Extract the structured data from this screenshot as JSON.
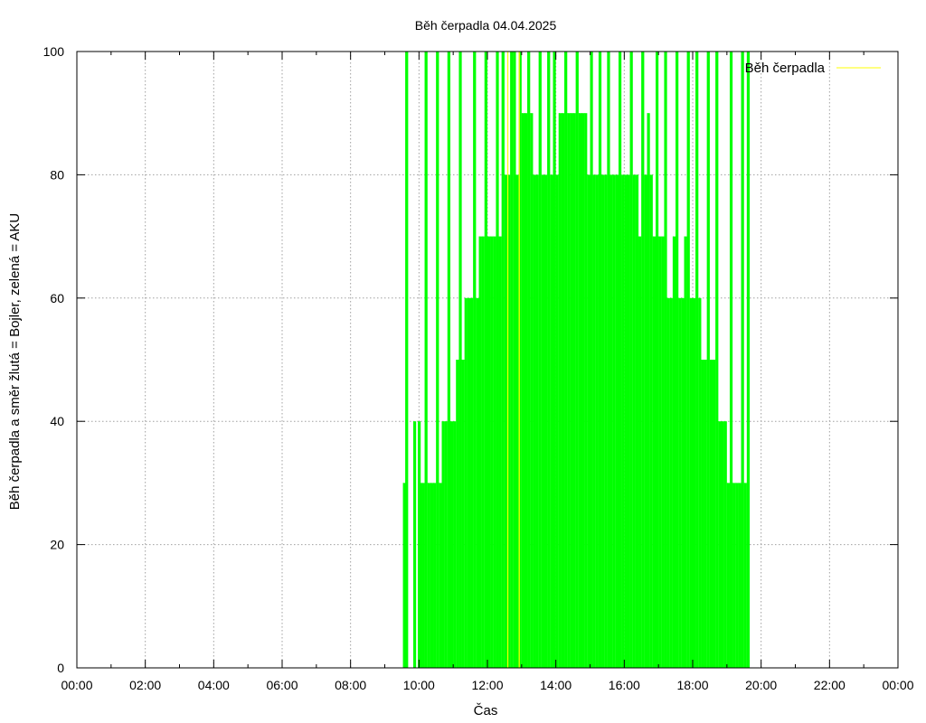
{
  "chart_data": {
    "type": "bar",
    "title": "Běh čerpadla 04.04.2025",
    "xlabel": "Čas",
    "ylabel": "Běh čerpadla a směr žlutá = Bojler, zelená = AKU",
    "xlim_hours": [
      0,
      24
    ],
    "ylim": [
      0,
      100
    ],
    "x_ticks": [
      "00:00",
      "02:00",
      "04:00",
      "06:00",
      "08:00",
      "10:00",
      "12:00",
      "14:00",
      "16:00",
      "18:00",
      "20:00",
      "22:00",
      "00:00"
    ],
    "y_ticks": [
      "0",
      "20",
      "40",
      "60",
      "80",
      "100"
    ],
    "grid": true,
    "legend_position": "top-right",
    "colors": {
      "aku": "#00ff00",
      "bojler": "#ffff00",
      "grid": "#a0a0a0",
      "frame": "#000000"
    },
    "series": [
      {
        "name": "Běh čerpadla",
        "color": "#00ff00",
        "x": [
          "09:32",
          "09:36",
          "09:50",
          "09:58",
          "10:00",
          "10:05",
          "10:10",
          "10:15",
          "10:20",
          "10:25",
          "10:30",
          "10:35",
          "10:40",
          "10:45",
          "10:50",
          "10:55",
          "11:00",
          "11:05",
          "11:10",
          "11:15",
          "11:20",
          "11:25",
          "11:30",
          "11:35",
          "11:40",
          "11:45",
          "11:50",
          "11:55",
          "12:00",
          "12:05",
          "12:10",
          "12:15",
          "12:20",
          "12:25",
          "12:30",
          "12:35",
          "12:40",
          "12:45",
          "12:50",
          "12:55",
          "13:00",
          "13:05",
          "13:10",
          "13:15",
          "13:20",
          "13:25",
          "13:30",
          "13:35",
          "13:40",
          "13:45",
          "13:50",
          "13:55",
          "14:00",
          "14:05",
          "14:10",
          "14:15",
          "14:20",
          "14:25",
          "14:30",
          "14:35",
          "14:40",
          "14:45",
          "14:50",
          "14:55",
          "15:00",
          "15:05",
          "15:10",
          "15:15",
          "15:20",
          "15:25",
          "15:30",
          "15:35",
          "15:40",
          "15:45",
          "15:50",
          "15:55",
          "16:00",
          "16:05",
          "16:10",
          "16:15",
          "16:20",
          "16:25",
          "16:30",
          "16:35",
          "16:40",
          "16:45",
          "16:50",
          "16:55",
          "17:00",
          "17:05",
          "17:10",
          "17:15",
          "17:20",
          "17:25",
          "17:30",
          "17:35",
          "17:40",
          "17:45",
          "17:50",
          "17:55",
          "18:00",
          "18:05",
          "18:10",
          "18:15",
          "18:20",
          "18:25",
          "18:30",
          "18:35",
          "18:40",
          "18:45",
          "18:50",
          "18:55",
          "19:00",
          "19:05",
          "19:10",
          "19:15",
          "19:20",
          "19:25",
          "19:30",
          "19:35"
        ],
        "values": [
          30,
          100,
          40,
          40,
          30,
          30,
          100,
          30,
          30,
          30,
          100,
          30,
          40,
          40,
          100,
          40,
          40,
          50,
          100,
          50,
          60,
          60,
          60,
          100,
          60,
          70,
          70,
          100,
          70,
          70,
          70,
          100,
          70,
          100,
          80,
          80,
          100,
          100,
          80,
          100,
          90,
          90,
          100,
          90,
          80,
          80,
          100,
          80,
          80,
          100,
          80,
          100,
          80,
          90,
          90,
          100,
          90,
          90,
          90,
          100,
          90,
          90,
          90,
          80,
          100,
          80,
          80,
          100,
          80,
          80,
          100,
          80,
          80,
          80,
          100,
          80,
          80,
          80,
          100,
          80,
          80,
          70,
          100,
          80,
          90,
          80,
          70,
          100,
          70,
          70,
          100,
          60,
          60,
          70,
          100,
          60,
          60,
          70,
          100,
          60,
          60,
          100,
          60,
          50,
          50,
          100,
          50,
          50,
          100,
          40,
          40,
          40,
          30,
          100,
          30,
          30,
          30,
          100,
          30,
          100
        ],
        "duration_min": 5
      },
      {
        "name": "Bojler",
        "color": "#ffff00",
        "x": [
          "12:35",
          "12:55"
        ],
        "values": [
          100,
          100
        ],
        "duration_min": 1
      }
    ]
  }
}
